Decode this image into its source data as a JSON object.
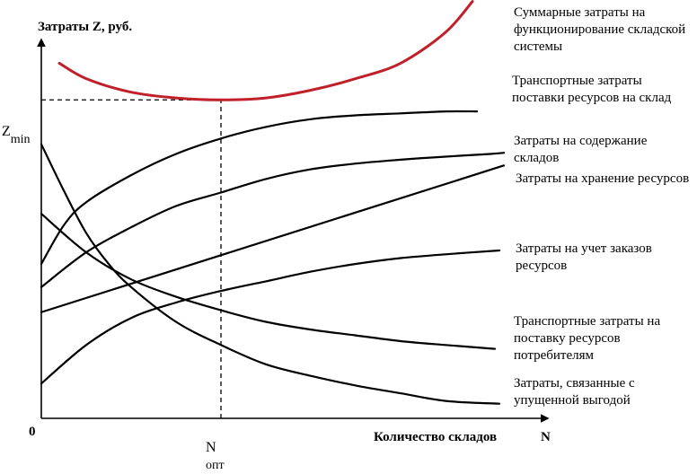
{
  "chart_data": {
    "type": "line",
    "title": "",
    "ylabel": "Затраты Z, руб.",
    "xlabel": "Количество складов",
    "x_axis_symbol": "N",
    "origin_label": "0",
    "x_marker": {
      "label": "N",
      "subscript": "опт",
      "x": 4.0
    },
    "y_marker": {
      "label": "Z",
      "subscript": "min",
      "y": 8.25
    },
    "xlim": [
      0,
      11
    ],
    "ylim": [
      0,
      10
    ],
    "grid": false,
    "series": [
      {
        "name": "Суммарные затраты на функционирование складской системы",
        "color": "#c0202a",
        "x": [
          0.4,
          1.0,
          2.0,
          3.0,
          4.0,
          5.0,
          6.0,
          7.0,
          8.0,
          9.0,
          9.6
        ],
        "y": [
          9.2,
          8.8,
          8.45,
          8.3,
          8.25,
          8.3,
          8.5,
          8.8,
          9.2,
          10.0,
          10.8
        ]
      },
      {
        "name": "Транспортные затраты поставки ресурсов на склад",
        "color": "#000000",
        "x": [
          0,
          0.5,
          1,
          2,
          3,
          4,
          5,
          6,
          7,
          8,
          9,
          9.7
        ],
        "y": [
          4.0,
          5.0,
          5.6,
          6.3,
          6.85,
          7.25,
          7.55,
          7.75,
          7.85,
          7.9,
          7.95,
          7.95
        ]
      },
      {
        "name": "Затраты на содержание складов",
        "color": "#000000",
        "x": [
          0,
          1,
          2,
          3,
          4,
          5,
          6,
          7,
          8,
          9,
          10,
          10.3
        ],
        "y": [
          3.4,
          4.3,
          4.95,
          5.5,
          5.85,
          6.2,
          6.45,
          6.6,
          6.7,
          6.78,
          6.85,
          6.88
        ]
      },
      {
        "name": "Затраты на хранение ресурсов",
        "color": "#000000",
        "x": [
          0,
          10.3
        ],
        "y": [
          2.75,
          6.55
        ]
      },
      {
        "name": "Затраты на учет заказов ресурсов",
        "color": "#000000",
        "x": [
          0,
          1,
          2,
          3,
          4,
          5,
          6,
          7,
          8,
          9,
          10.2
        ],
        "y": [
          0.9,
          1.9,
          2.6,
          3.0,
          3.3,
          3.55,
          3.8,
          4.0,
          4.15,
          4.25,
          4.35
        ]
      },
      {
        "name": "Транспортные затраты на поставку ресурсов потребителям",
        "color": "#000000",
        "x": [
          0,
          1,
          2,
          3,
          4,
          5,
          6,
          7,
          8,
          9,
          10.1
        ],
        "y": [
          5.3,
          4.3,
          3.6,
          3.15,
          2.8,
          2.5,
          2.3,
          2.15,
          2.0,
          1.9,
          1.8
        ]
      },
      {
        "name": "Затраты, связанные с упущенной выгодой",
        "color": "#000000",
        "x": [
          0,
          0.5,
          1,
          1.5,
          2,
          3,
          4,
          5,
          6,
          7,
          8,
          9,
          10.2
        ],
        "y": [
          7.1,
          5.9,
          4.8,
          4.0,
          3.4,
          2.5,
          1.9,
          1.4,
          1.1,
          0.85,
          0.65,
          0.45,
          0.38
        ]
      }
    ]
  }
}
